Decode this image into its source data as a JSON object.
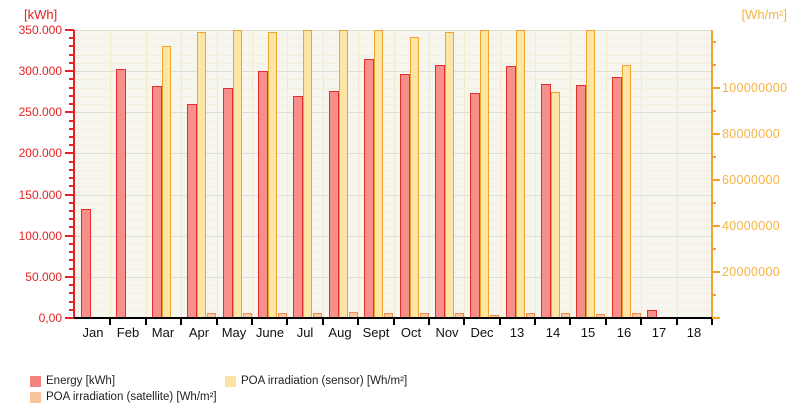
{
  "chart_data": {
    "type": "bar",
    "title": "",
    "categories": [
      "Jan",
      "Feb",
      "Mar",
      "Apr",
      "May",
      "June",
      "Jul",
      "Aug",
      "Sept",
      "Oct",
      "Nov",
      "Dec",
      "13",
      "14",
      "15",
      "16",
      "17",
      "18"
    ],
    "series": [
      {
        "name": "Energy [kWh]",
        "axis": "left",
        "fill": "#F7908A",
        "stroke": "#E62E2E",
        "values": [
          132000,
          303000,
          282000,
          260000,
          279000,
          300000,
          270000,
          276000,
          315000,
          297000,
          308000,
          273000,
          306000,
          284000,
          283000,
          293000,
          10000,
          null
        ]
      },
      {
        "name": "POA irradiation (satellite) [Wh/m²]",
        "axis": "right",
        "fill": "#FAC8A2",
        "stroke": "#EE8C52",
        "values": [
          null,
          null,
          null,
          2200000,
          2200000,
          2000000,
          2200000,
          2500000,
          2000000,
          2000000,
          2000000,
          1500000,
          2200000,
          2200000,
          1700000,
          2000000,
          null,
          null
        ]
      },
      {
        "name": "POA irradiation (sensor) [Wh/m²]",
        "axis": "right",
        "fill": "#FBE6A5",
        "stroke": "#F0A42F",
        "values": [
          null,
          null,
          118000000,
          124000000,
          125000000,
          124000000,
          125000000,
          125000000,
          125000000,
          122000000,
          124000000,
          125000000,
          125000000,
          98000000,
          125000000,
          110000000,
          null,
          null
        ]
      }
    ],
    "left_axis": {
      "label": "[kWh]",
      "min": 0,
      "max": 350000,
      "major_step": 50000,
      "minor_step": 10000,
      "tick_labels": [
        "0,00",
        "50.000",
        "100.000",
        "150.000",
        "200.000",
        "250.000",
        "300.000",
        "350.000"
      ],
      "color": "#E62222"
    },
    "right_axis": {
      "label": "[Wh/m²]",
      "min": 0,
      "max": 125000000,
      "major_step": 20000000,
      "minor_step": 10000000,
      "tick_labels": [
        "20000000",
        "40000000",
        "60000000",
        "80000000",
        "100000000"
      ],
      "color": "#F0A42F"
    },
    "grid": true,
    "legend_position": "bottom"
  },
  "legend": {
    "items": [
      {
        "label": "Energy [kWh]",
        "color": "#F4837D"
      },
      {
        "label": "POA irradiation (satellite) [Wh/m²]",
        "color": "#F9C49C"
      },
      {
        "label": "POA irradiation (sensor) [Wh/m²]",
        "color": "#FAE3A4"
      }
    ]
  }
}
